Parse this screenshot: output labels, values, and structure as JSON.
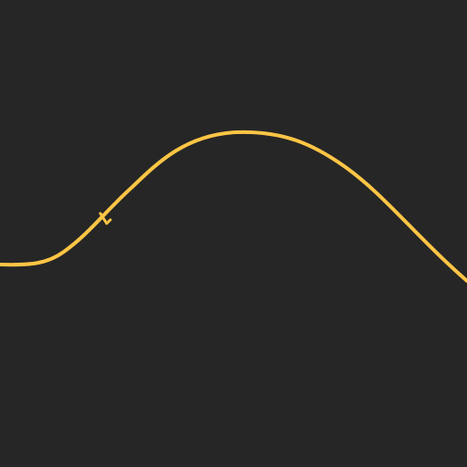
{
  "canvas": {
    "background_color": "#262626",
    "curve_color": "#ffc545",
    "curve_name": "smooth-wave-curve",
    "marker_name": "curve-tick-marker"
  }
}
